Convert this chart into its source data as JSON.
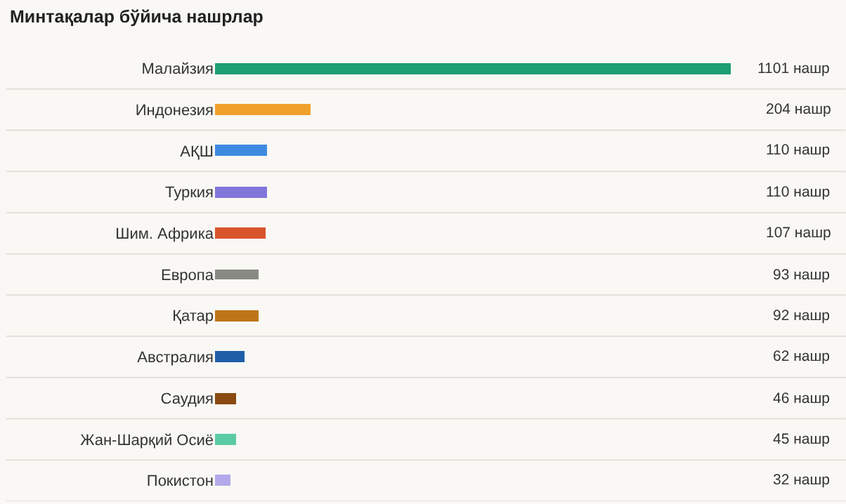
{
  "chart_data": {
    "type": "bar",
    "orientation": "horizontal",
    "title": "Минтақалар бўйича нашрлар",
    "categories": [
      "Малайзия",
      "Индонезия",
      "АҚШ",
      "Туркия",
      "Шим. Африка",
      "Европа",
      "Қатар",
      "Австралия",
      "Саудия",
      "Жан-Шарқий Осиё",
      "Покистон"
    ],
    "values": [
      1101,
      204,
      110,
      110,
      107,
      93,
      92,
      62,
      46,
      45,
      32
    ],
    "colors": [
      "#1e9e73",
      "#f0a12c",
      "#3d8ae0",
      "#8276db",
      "#d9542c",
      "#8a8a84",
      "#bd7518",
      "#1e5fa8",
      "#8a4a10",
      "#5ccba5",
      "#b4a9ea"
    ],
    "value_labels": [
      "1101 нашр",
      "204 нашр",
      "110 нашр",
      "110 нашр",
      "107 нашр",
      "93 нашр",
      "92 нашр",
      "62 нашр",
      "46 нашр",
      "45 нашр",
      "32 нашр"
    ],
    "xlim": [
      0,
      1101
    ],
    "tick_labels": "y"
  }
}
